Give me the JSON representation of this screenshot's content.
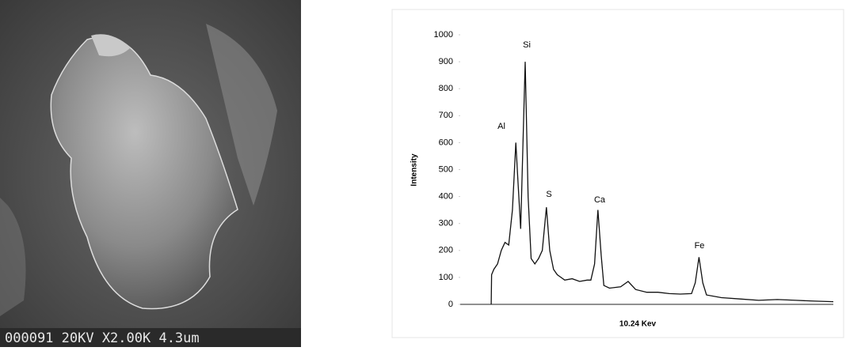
{
  "micrograph": {
    "caption": "000091 20KV X2.00K 4.3um"
  },
  "chart_data": {
    "type": "line",
    "x_label": "10.24 Kev",
    "y_label": "Intensity",
    "annotations": [
      "Al",
      "Si",
      "S",
      "Ca",
      "Fe"
    ],
    "x": [
      0.83,
      0.84,
      0.9,
      1.0,
      1.1,
      1.2,
      1.3,
      1.4,
      1.49,
      1.55,
      1.62,
      1.74,
      1.82,
      1.9,
      2.0,
      2.1,
      2.2,
      2.31,
      2.4,
      2.5,
      2.6,
      2.7,
      2.8,
      3.0,
      3.2,
      3.4,
      3.5,
      3.6,
      3.69,
      3.78,
      3.85,
      4.0,
      4.3,
      4.5,
      4.7,
      5.0,
      5.3,
      5.6,
      5.9,
      6.2,
      6.3,
      6.4,
      6.5,
      6.6,
      7.0,
      7.5,
      8.0,
      8.5,
      9.0,
      9.5,
      10.0
    ],
    "values": [
      0,
      110,
      130,
      150,
      200,
      230,
      220,
      350,
      600,
      450,
      280,
      900,
      400,
      170,
      150,
      170,
      200,
      360,
      200,
      130,
      110,
      100,
      90,
      95,
      85,
      90,
      90,
      150,
      350,
      180,
      70,
      60,
      65,
      85,
      55,
      45,
      45,
      40,
      38,
      40,
      80,
      175,
      80,
      35,
      25,
      20,
      15,
      18,
      15,
      12,
      10
    ],
    "color": "#111111",
    "xlim": [
      0,
      10
    ],
    "ylim": [
      0,
      1000
    ],
    "yticks": [
      0,
      100,
      200,
      300,
      400,
      500,
      600,
      700,
      800,
      900,
      1000
    ]
  }
}
